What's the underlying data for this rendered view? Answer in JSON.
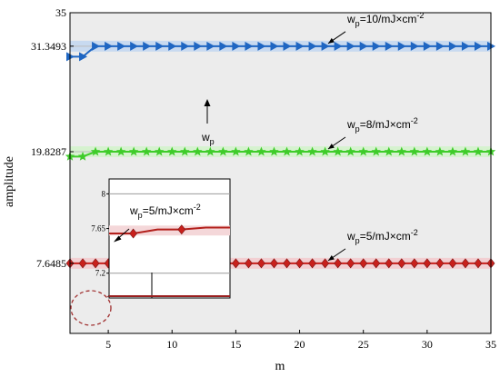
{
  "chart_data": {
    "type": "line",
    "xlabel": "m",
    "ylabel": "amplitude",
    "xlim": [
      2,
      35
    ],
    "ylim": [
      0,
      35
    ],
    "x_ticks": [
      5,
      10,
      15,
      20,
      25,
      30,
      35
    ],
    "y_ticks": [
      {
        "value": 7.6485,
        "label": "7.6485"
      },
      {
        "value": 19.8287,
        "label": "19.8287"
      },
      {
        "value": 31.3493,
        "label": "31.3493"
      },
      {
        "value": 35,
        "label": "35"
      }
    ],
    "series": [
      {
        "id": "wp10",
        "label_main": "w",
        "label_sub": "p",
        "label_rest": "=10/mJ×cm",
        "label_sup": "-2",
        "color": "#1f66c2",
        "band": "#c8daf0",
        "marker": "triangle-right",
        "start": [
          2,
          3
        ],
        "start_value": 30.2,
        "value": 31.3493
      },
      {
        "id": "wp8",
        "label_main": "w",
        "label_sub": "p",
        "label_rest": "=8/mJ×cm",
        "label_sup": "-2",
        "color": "#3fcc2a",
        "band": "#d6f2cf",
        "marker": "star",
        "start": [
          2,
          3
        ],
        "start_value": 19.3,
        "value": 19.8287
      },
      {
        "id": "wp5",
        "label_main": "w",
        "label_sub": "p",
        "label_rest": "=5/mJ×cm",
        "label_sup": "-2",
        "color": "#c8201c",
        "band": "#f2cfd2",
        "marker": "diamond",
        "start": [
          2,
          3
        ],
        "start_value": 7.6485,
        "value": 7.6485
      }
    ],
    "direction_label": {
      "main": "w",
      "sub": "p"
    },
    "inset": {
      "label_main": "w",
      "label_sub": "p",
      "label_rest": "=5/mJ×cm",
      "label_sup": "-2",
      "ylim": [
        6.95,
        8.15
      ],
      "y_ticks": [
        {
          "value": 8,
          "label": "8"
        },
        {
          "value": 7.65,
          "label": "7.65"
        },
        {
          "value": 7.2,
          "label": "7.2"
        }
      ],
      "points": [
        [
          0,
          7.6
        ],
        [
          1,
          7.6
        ],
        [
          2,
          7.64
        ],
        [
          3,
          7.64
        ],
        [
          4,
          7.66
        ],
        [
          5,
          7.66
        ]
      ]
    }
  }
}
